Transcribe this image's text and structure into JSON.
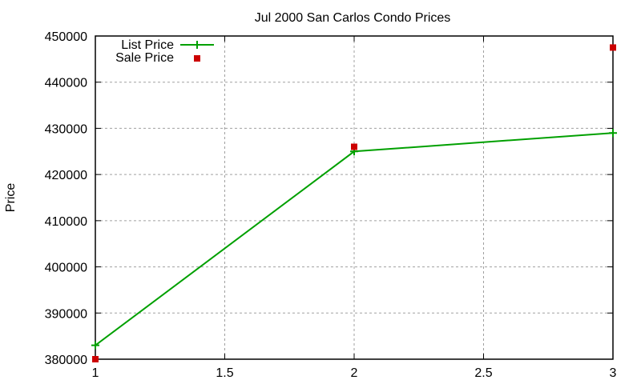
{
  "chart_data": {
    "type": "line",
    "title": "Jul 2000 San Carlos Condo Prices",
    "xlabel": "",
    "ylabel": "Price",
    "xlim": [
      1,
      3
    ],
    "ylim": [
      380000,
      450000
    ],
    "x_ticks": [
      "1",
      "1.5",
      "2",
      "2.5",
      "3"
    ],
    "y_ticks": [
      "380000",
      "390000",
      "400000",
      "410000",
      "420000",
      "430000",
      "440000",
      "450000"
    ],
    "grid": true,
    "legend_position": "top-left",
    "x": [
      1,
      2,
      3
    ],
    "series": [
      {
        "name": "List Price",
        "style": "linespoints",
        "marker": "plus",
        "color": "#00a000",
        "values": [
          383000,
          425000,
          429000
        ]
      },
      {
        "name": "Sale Price",
        "style": "points",
        "marker": "square",
        "color": "#cc0000",
        "values": [
          380000,
          426000,
          447500
        ]
      }
    ]
  }
}
